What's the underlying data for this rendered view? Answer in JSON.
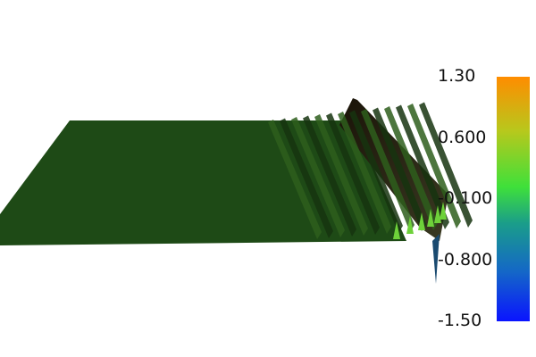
{
  "colorbar": {
    "ticks": [
      {
        "value": 1.3,
        "label": "1.30"
      },
      {
        "value": 0.6,
        "label": "0.600"
      },
      {
        "value": -0.1,
        "label": "-0.100"
      },
      {
        "value": -0.8,
        "label": "-0.800"
      },
      {
        "value": -1.5,
        "label": "-1.50"
      }
    ],
    "range": [
      -1.5,
      1.3
    ],
    "colormap": {
      "top": "#ff8c00",
      "upper": "#b8c81c",
      "middle": "#3fe03a",
      "lower_mid": "#1a9d8a",
      "lower": "#1466c8",
      "bottom": "#0a14ff"
    }
  },
  "surface": {
    "base_color": "#1e4a16",
    "edge_color": "#1a1308",
    "highlight_color": "#6ed13a"
  }
}
